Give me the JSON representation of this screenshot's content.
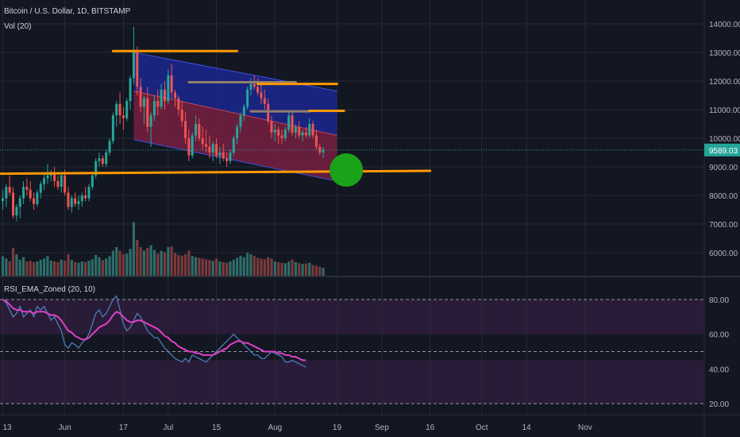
{
  "header": {
    "symbol_line": "Bitcoin / U.S. Dollar, 1D, BITSTAMP",
    "volume_label": "Vol (20)"
  },
  "colors": {
    "background": "#131722",
    "grid": "#262a35",
    "axis_text": "#b2b5be",
    "up_candle": "#26a69a",
    "down_candle": "#ef5350",
    "up_volume": "#2e6e69",
    "down_volume": "#7a3a3c",
    "last_price_line": "#26a69a",
    "orange": "#ff9800",
    "grey_line": "#8f7e6e",
    "channel_blue": "#1c2a9e",
    "channel_red": "#7a1c2c",
    "target_circle": "#1aa31a",
    "rsi_line": "#4a7db8",
    "ema_line": "#e040c8",
    "zone_fill": "#2a1c38"
  },
  "chart_data": [
    {
      "type": "candlestick",
      "title": "Bitcoin / U.S. Dollar, 1D, BITSTAMP",
      "x_ticks": [
        "13",
        "Jun",
        "17",
        "Jul",
        "15",
        "Aug",
        "19",
        "Sep",
        "16",
        "Oct",
        "14",
        "Nov"
      ],
      "x_tick_days": [
        0,
        18,
        35,
        48,
        62,
        79,
        97,
        110,
        124,
        139,
        152,
        169
      ],
      "y_ticks": [
        "14000.00",
        "13000.00",
        "12000.00",
        "11000.00",
        "10000.00",
        "9000.00",
        "8000.00",
        "7000.00",
        "6000.00"
      ],
      "ylim": [
        5400,
        14700
      ],
      "last_price": 9589.03,
      "last_price_label": "9589.03",
      "series_ohlc": [
        [
          7800,
          8200,
          7500,
          7900
        ],
        [
          7900,
          8400,
          7600,
          8300
        ],
        [
          8300,
          8700,
          8000,
          8100
        ],
        [
          8100,
          8300,
          7200,
          7300
        ],
        [
          7300,
          7700,
          7100,
          7600
        ],
        [
          7600,
          8000,
          7200,
          7900
        ],
        [
          7900,
          8500,
          7700,
          8300
        ],
        [
          8300,
          8600,
          8000,
          8200
        ],
        [
          8200,
          8500,
          7800,
          7900
        ],
        [
          7900,
          8100,
          7500,
          7700
        ],
        [
          7700,
          8200,
          7600,
          8100
        ],
        [
          8100,
          8500,
          7900,
          8400
        ],
        [
          8400,
          8800,
          8200,
          8600
        ],
        [
          8600,
          9100,
          8400,
          8700
        ],
        [
          8700,
          8900,
          8500,
          8800
        ],
        [
          8800,
          9000,
          8300,
          8500
        ],
        [
          8500,
          8700,
          8200,
          8300
        ],
        [
          8300,
          8800,
          8100,
          8700
        ],
        [
          8700,
          8900,
          8000,
          8100
        ],
        [
          8100,
          8300,
          7500,
          7600
        ],
        [
          7600,
          8000,
          7400,
          7900
        ],
        [
          7900,
          8100,
          7600,
          7700
        ],
        [
          7700,
          8000,
          7500,
          7800
        ],
        [
          7800,
          8100,
          7600,
          8000
        ],
        [
          8000,
          8300,
          7800,
          7900
        ],
        [
          7900,
          8400,
          7800,
          8300
        ],
        [
          8300,
          8800,
          8200,
          8700
        ],
        [
          8700,
          9300,
          8600,
          9200
        ],
        [
          9200,
          9500,
          9000,
          9300
        ],
        [
          9300,
          9400,
          9000,
          9100
        ],
        [
          9100,
          9600,
          9000,
          9500
        ],
        [
          9500,
          10000,
          9400,
          9900
        ],
        [
          9900,
          10900,
          9800,
          10800
        ],
        [
          10800,
          11300,
          10400,
          11200
        ],
        [
          11200,
          11600,
          10500,
          10800
        ],
        [
          10800,
          11100,
          10300,
          10700
        ],
        [
          10700,
          11400,
          10600,
          11300
        ],
        [
          11300,
          12200,
          11000,
          12100
        ],
        [
          12100,
          13900,
          11900,
          13000
        ],
        [
          13000,
          13200,
          11500,
          11800
        ],
        [
          11800,
          12100,
          10900,
          11100
        ],
        [
          11100,
          11500,
          10500,
          11400
        ],
        [
          11400,
          11800,
          10200,
          10400
        ],
        [
          10400,
          10900,
          9700,
          10800
        ],
        [
          10800,
          11500,
          10600,
          11300
        ],
        [
          11300,
          11700,
          10800,
          11100
        ],
        [
          11100,
          11900,
          11000,
          11700
        ],
        [
          11700,
          12000,
          11000,
          11300
        ],
        [
          11300,
          12400,
          11200,
          12200
        ],
        [
          12200,
          12600,
          11400,
          11600
        ],
        [
          11600,
          11700,
          11100,
          11400
        ],
        [
          11400,
          11500,
          10800,
          11000
        ],
        [
          11000,
          11300,
          10400,
          10600
        ],
        [
          10600,
          10900,
          9800,
          10000
        ],
        [
          10000,
          10300,
          9200,
          9400
        ],
        [
          9400,
          10200,
          9300,
          10100
        ],
        [
          10100,
          10800,
          9900,
          10500
        ],
        [
          10500,
          10700,
          9900,
          10000
        ],
        [
          10000,
          10400,
          9600,
          9800
        ],
        [
          9800,
          10300,
          9500,
          9700
        ],
        [
          9700,
          10100,
          9300,
          9500
        ],
        [
          9500,
          9900,
          9200,
          9800
        ],
        [
          9800,
          10000,
          9300,
          9400
        ],
        [
          9400,
          9700,
          9100,
          9500
        ],
        [
          9500,
          9800,
          9200,
          9300
        ],
        [
          9300,
          9500,
          9000,
          9200
        ],
        [
          9200,
          9600,
          9100,
          9500
        ],
        [
          9500,
          10100,
          9400,
          10000
        ],
        [
          10000,
          10500,
          9800,
          10400
        ],
        [
          10400,
          10900,
          10200,
          10800
        ],
        [
          10800,
          11200,
          10600,
          11100
        ],
        [
          11100,
          11800,
          11000,
          11700
        ],
        [
          11700,
          12100,
          11500,
          11900
        ],
        [
          11900,
          12200,
          11700,
          11800
        ],
        [
          11800,
          12100,
          11500,
          11600
        ],
        [
          11600,
          11900,
          11200,
          11400
        ],
        [
          11400,
          11700,
          11000,
          11200
        ],
        [
          11200,
          11400,
          10500,
          10600
        ],
        [
          10600,
          10800,
          10000,
          10200
        ],
        [
          10200,
          10500,
          9900,
          10300
        ],
        [
          10300,
          10400,
          9800,
          10100
        ],
        [
          10100,
          10300,
          9800,
          10000
        ],
        [
          10000,
          10400,
          9900,
          10300
        ],
        [
          10300,
          10900,
          10200,
          10800
        ],
        [
          10800,
          10900,
          10100,
          10200
        ],
        [
          10200,
          10500,
          10000,
          10400
        ],
        [
          10400,
          10600,
          10000,
          10100
        ],
        [
          10100,
          10300,
          9900,
          10200
        ],
        [
          10200,
          10400,
          10000,
          10100
        ],
        [
          10100,
          10700,
          10000,
          10500
        ],
        [
          10500,
          10600,
          10000,
          10100
        ],
        [
          10100,
          10300,
          9600,
          9700
        ],
        [
          9700,
          9800,
          9400,
          9500
        ],
        [
          9500,
          9700,
          9300,
          9600
        ]
      ],
      "volumes": [
        55,
        48,
        40,
        78,
        60,
        45,
        52,
        40,
        42,
        38,
        40,
        45,
        48,
        55,
        42,
        40,
        38,
        45,
        42,
        60,
        44,
        38,
        36,
        40,
        38,
        42,
        46,
        58,
        52,
        44,
        48,
        55,
        70,
        80,
        70,
        60,
        62,
        75,
        150,
        100,
        80,
        70,
        78,
        85,
        72,
        62,
        70,
        66,
        80,
        82,
        64,
        58,
        56,
        60,
        70,
        55,
        52,
        50,
        48,
        46,
        44,
        42,
        48,
        40,
        38,
        36,
        40,
        45,
        50,
        56,
        52,
        64,
        60,
        55,
        50,
        48,
        46,
        52,
        48,
        40,
        38,
        36,
        35,
        40,
        45,
        38,
        35,
        33,
        34,
        36,
        30,
        28,
        25,
        22
      ],
      "channel": {
        "blue_top": [
          [
            38,
            13000
          ],
          [
            97,
            11650
          ]
        ],
        "blue_bottom": [
          [
            38,
            9950
          ],
          [
            97,
            8500
          ]
        ],
        "red_top": [
          [
            38,
            11650
          ],
          [
            97,
            10100
          ]
        ],
        "red_bottom": [
          [
            38,
            9950
          ],
          [
            97,
            8500
          ]
        ]
      },
      "horizontal_lines": [
        {
          "kind": "orange",
          "day0": 32,
          "day1": 68,
          "price": 13050
        },
        {
          "kind": "grey",
          "day0": 54,
          "day1": 85,
          "price": 11960
        },
        {
          "kind": "orange",
          "day0": 74,
          "day1": 97,
          "price": 11900
        },
        {
          "kind": "grey",
          "day0": 72,
          "day1": 89,
          "price": 10940
        },
        {
          "kind": "orange",
          "day0": 89,
          "day1": 99,
          "price": 10960
        },
        {
          "kind": "orange",
          "day0": -3,
          "day1": 124,
          "price_at_day0": 8760,
          "price_at_day1": 8860
        }
      ],
      "target_circle": {
        "day": 99,
        "price": 8860
      }
    },
    {
      "type": "line",
      "title": "RSI_EMA_Zoned (20, 10)",
      "y_ticks": [
        "80.00",
        "60.00",
        "40.00",
        "20.00"
      ],
      "ylim": [
        15,
        88
      ],
      "dashed_levels": [
        80,
        50,
        20
      ],
      "zones": [
        [
          60,
          80
        ],
        [
          20,
          45
        ]
      ],
      "series": [
        {
          "kind": "rsi",
          "values": [
            80,
            78,
            74,
            70,
            72,
            76,
            70,
            72,
            74,
            70,
            76,
            74,
            76,
            72,
            68,
            70,
            66,
            62,
            54,
            52,
            55,
            54,
            52,
            55,
            57,
            60,
            66,
            72,
            74,
            70,
            72,
            76,
            80,
            82,
            74,
            66,
            62,
            64,
            68,
            72,
            70,
            66,
            62,
            60,
            58,
            58,
            55,
            52,
            50,
            48,
            46,
            45,
            44,
            46,
            44,
            48,
            47,
            46,
            45,
            44,
            46,
            48,
            50,
            52,
            54,
            56,
            58,
            60,
            58,
            56,
            54,
            52,
            50,
            48,
            48,
            46,
            46,
            48,
            50,
            49,
            48,
            47,
            44,
            44,
            45,
            44,
            43,
            42,
            41
          ]
        },
        {
          "kind": "ema",
          "values": [
            80,
            79,
            77,
            75,
            74,
            74,
            73,
            73,
            73,
            72,
            73,
            73,
            73,
            72,
            71,
            71,
            70,
            68,
            65,
            62,
            61,
            59,
            58,
            57,
            57,
            58,
            60,
            62,
            64,
            65,
            66,
            68,
            71,
            73,
            72,
            70,
            68,
            67,
            67,
            68,
            68,
            67,
            66,
            65,
            64,
            63,
            61,
            59,
            58,
            56,
            55,
            53,
            52,
            51,
            50,
            50,
            49,
            49,
            48,
            48,
            48,
            48,
            49,
            50,
            51,
            52,
            54,
            55,
            56,
            56,
            55,
            55,
            54,
            53,
            52,
            51,
            50,
            50,
            50,
            50,
            49,
            49,
            48,
            48,
            47,
            47,
            46,
            45,
            45
          ]
        }
      ]
    }
  ]
}
